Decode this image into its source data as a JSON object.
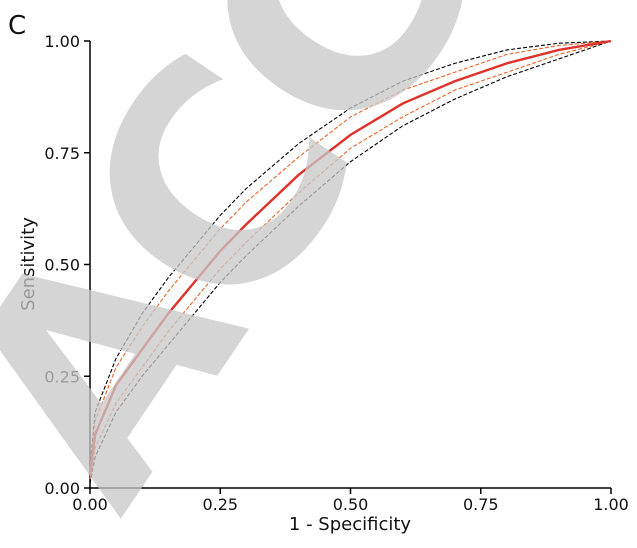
{
  "chart_data": {
    "type": "line",
    "panel_label": "C",
    "watermark": "ACCE",
    "xlabel": "1 - Specificity",
    "ylabel": "Sensitivity",
    "x": [
      0,
      0.01,
      0.05,
      0.1,
      0.15,
      0.2,
      0.25,
      0.3,
      0.4,
      0.5,
      0.6,
      0.7,
      0.8,
      0.9,
      1.0
    ],
    "series": [
      {
        "color": "#000000",
        "dashed": true,
        "values": [
          0.05,
          0.17,
          0.29,
          0.39,
          0.47,
          0.54,
          0.61,
          0.67,
          0.77,
          0.85,
          0.91,
          0.95,
          0.98,
          0.995,
          1.0
        ]
      },
      {
        "color": "#000000",
        "dashed": true,
        "values": [
          0.01,
          0.07,
          0.17,
          0.25,
          0.32,
          0.39,
          0.46,
          0.52,
          0.63,
          0.73,
          0.81,
          0.87,
          0.92,
          0.96,
          1.0
        ]
      },
      {
        "color": "#e8662a",
        "dashed": true,
        "values": [
          0.04,
          0.15,
          0.27,
          0.36,
          0.44,
          0.51,
          0.58,
          0.64,
          0.74,
          0.83,
          0.89,
          0.93,
          0.97,
          0.99,
          1.0
        ]
      },
      {
        "color": "#e8662a",
        "dashed": true,
        "values": [
          0.02,
          0.09,
          0.19,
          0.27,
          0.35,
          0.42,
          0.49,
          0.55,
          0.66,
          0.76,
          0.83,
          0.89,
          0.93,
          0.97,
          1.0
        ]
      },
      {
        "color": "#e0312a",
        "dashed": false,
        "values": [
          0.03,
          0.12,
          0.23,
          0.31,
          0.39,
          0.46,
          0.53,
          0.59,
          0.7,
          0.79,
          0.86,
          0.91,
          0.95,
          0.98,
          1.0
        ]
      }
    ],
    "xlim": [
      0,
      1
    ],
    "ylim": [
      0,
      1
    ],
    "xticks": [
      {
        "value": 0,
        "label": "0.00"
      },
      {
        "value": 0.25,
        "label": "0.25"
      },
      {
        "value": 0.5,
        "label": "0.50"
      },
      {
        "value": 0.75,
        "label": "0.75"
      },
      {
        "value": 1,
        "label": "1.00"
      }
    ],
    "yticks": [
      {
        "value": 0,
        "label": "0.00"
      },
      {
        "value": 0.25,
        "label": "0.25"
      },
      {
        "value": 0.5,
        "label": "0.50"
      },
      {
        "value": 0.75,
        "label": "0.75"
      },
      {
        "value": 1,
        "label": "1.00"
      }
    ]
  }
}
